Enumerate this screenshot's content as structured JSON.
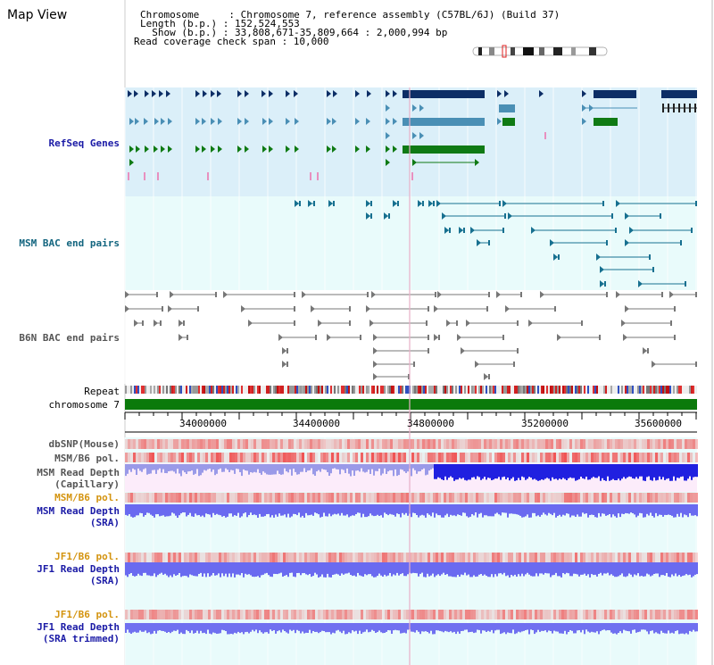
{
  "header": {
    "title": "Map View",
    "chromosome_line": "Chromosome     : Chromosome 7, reference assembly (C57BL/6J) (Build 37)",
    "length_line": "Length (b.p.) : 152,524,553",
    "show_line": "  Show (b.p.) : 33,808,671-35,809,664 : 2,000,994 bp",
    "coverage_line": "Read coverage check span : 10,000"
  },
  "tracks": {
    "refseq": "RefSeq Genes",
    "msm_bac": "MSM BAC end pairs",
    "b6n_bac": "B6N BAC end pairs",
    "repeat": "Repeat",
    "chromosome": "chromosome 7",
    "dbsnp": "dbSNP(Mouse)",
    "msm_b6_pol_1": "MSM/B6 pol.",
    "msm_depth_cap_1": "MSM Read Depth",
    "msm_depth_cap_2": "(Capillary)",
    "msm_b6_pol_2": "MSM/B6 pol.",
    "msm_depth_sra_1": "MSM Read Depth",
    "msm_depth_sra_2": "(SRA)",
    "jf1_b6_pol_1": "JF1/B6 pol.",
    "jf1_depth_sra_1": "JF1 Read Depth",
    "jf1_depth_sra_2": "(SRA)",
    "jf1_b6_pol_2": "JF1/B6 pol.",
    "jf1_depth_trim_1": "JF1 Read Depth",
    "jf1_depth_trim_2": "(SRA trimmed)"
  },
  "axis": {
    "ticks": [
      "34000000",
      "34400000",
      "34800000",
      "35200000",
      "35600000"
    ]
  },
  "colors": {
    "refseq_bg": "#dbeff9",
    "track_bg": "#e9fbfb",
    "navy": "#0d2e66",
    "steel": "#4a8fb5",
    "green": "#0f7a14",
    "teal_line": "#177090",
    "chrom_green": "#0b7a0b",
    "depth_blue": "#4848f0",
    "snp_red": "#f04848"
  }
}
